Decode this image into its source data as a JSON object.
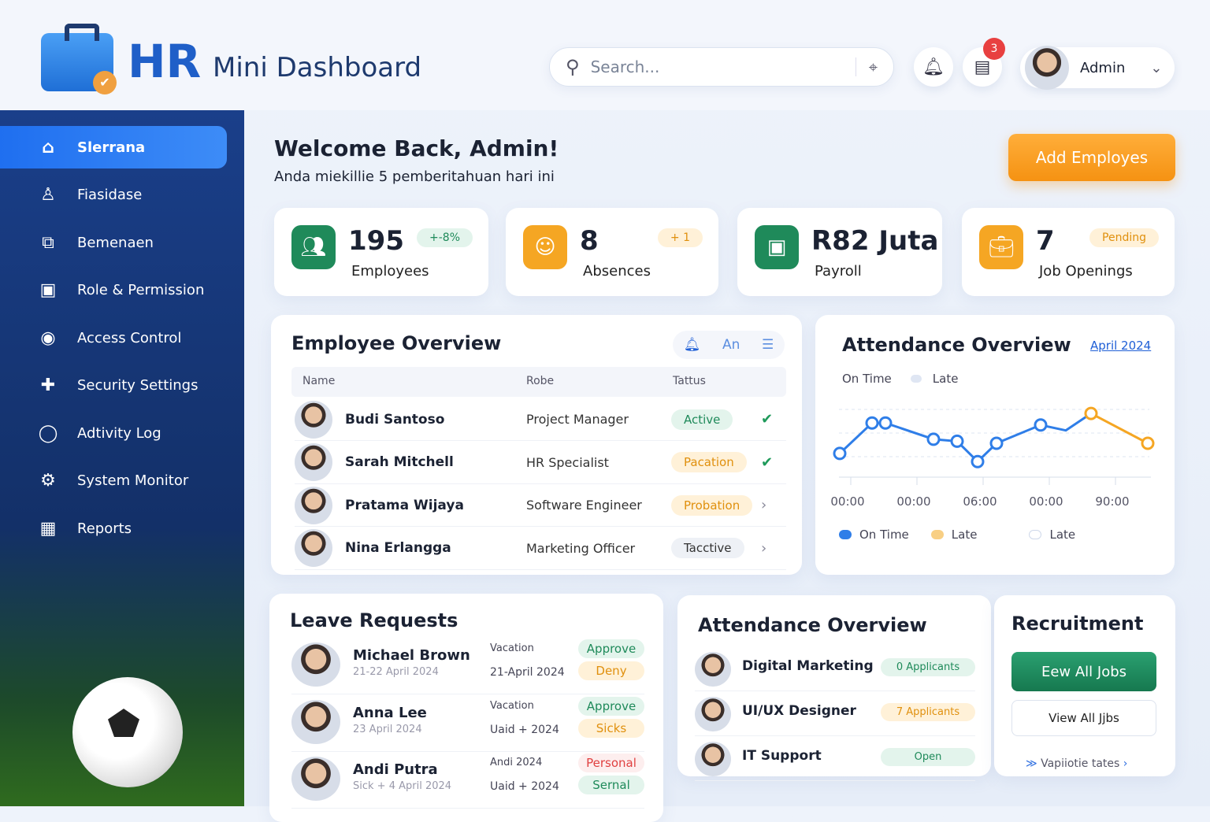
{
  "header": {
    "brand_bold": "HR",
    "brand_rest": "Mini Dashboard",
    "search_placeholder": "Search...",
    "notification_count": "3",
    "user_name": "Admin"
  },
  "sidebar": {
    "items": [
      {
        "label": "Slerrana",
        "icon": "home-icon",
        "active": true
      },
      {
        "label": "Fiasidase",
        "icon": "user-icon"
      },
      {
        "label": "Bemenaen",
        "icon": "devices-icon"
      },
      {
        "label": "Role & Permission",
        "icon": "briefcase-icon"
      },
      {
        "label": "Access Control",
        "icon": "eye-icon"
      },
      {
        "label": "Security Settings",
        "icon": "plus-badge-icon"
      },
      {
        "label": "Adtivity Log",
        "icon": "chat-icon"
      },
      {
        "label": "System Monitor",
        "icon": "gears-icon"
      },
      {
        "label": "Reports",
        "icon": "report-icon"
      }
    ]
  },
  "welcome": {
    "title": "Welcome Back, Admin!",
    "subtitle": "Anda miekillie 5 pemberitahuan hari ini",
    "add_button": "Add Employes"
  },
  "stats": [
    {
      "value": "195",
      "label": "Employees",
      "tag": "+-8%",
      "color": "#1f8a5a"
    },
    {
      "value": "8",
      "label": "Absences",
      "tag": "+ 1",
      "color": "#f5a623"
    },
    {
      "value": "R82 Juta",
      "label": "Payroll",
      "tag": "",
      "color": "#1f8a5a"
    },
    {
      "value": "7",
      "label": "Job Openings",
      "tag": "Pending",
      "color": "#f5a623"
    }
  ],
  "employee_overview": {
    "title": "Employee Overview",
    "toolbar": [
      "An"
    ],
    "columns": [
      "Name",
      "Robe",
      "Tattus"
    ],
    "rows": [
      {
        "name": "Budi Santoso",
        "role": "Project Manager",
        "status": "Active",
        "status_type": "g",
        "action": "✔"
      },
      {
        "name": "Sarah Mitchell",
        "role": "HR Specialist",
        "status": "Pacation",
        "status_type": "o",
        "action": "✔"
      },
      {
        "name": "Pratama Wijaya",
        "role": "Software Engineer",
        "status": "Probation",
        "status_type": "o",
        "action": "›"
      },
      {
        "name": "Nina Erlangga",
        "role": "Marketing Officer",
        "status": "Tacctive",
        "status_type": "gr",
        "action": "›"
      }
    ]
  },
  "attendance_chart": {
    "title": "Attendance Overview",
    "period_link": "April 2024",
    "top_legend": [
      "On Time",
      "Late"
    ],
    "bottom_legend": [
      "On Time",
      "Late",
      "Late"
    ]
  },
  "chart_data": {
    "type": "line",
    "title": "Attendance Overview",
    "x_ticks": [
      "00:00",
      "00:00",
      "06:00",
      "00:00",
      "90:00"
    ],
    "series": [
      {
        "name": "On Time",
        "color": "#2f7ee8",
        "points": [
          35,
          80,
          80,
          56,
          53,
          23,
          50,
          77,
          69,
          94
        ]
      },
      {
        "name": "Late",
        "color": "#f5a623",
        "points": [
          94,
          50
        ]
      }
    ],
    "grid": true
  },
  "leave_requests": {
    "title": "Leave Requests",
    "items": [
      {
        "name": "Michael Brown",
        "date": "21-22 April 2024",
        "type": "Vacation",
        "detail": "21-April 2024",
        "actions": [
          {
            "label": "Approve",
            "t": "g"
          },
          {
            "label": "Deny",
            "t": "o"
          }
        ]
      },
      {
        "name": "Anna Lee",
        "date": "23 April 2024",
        "type": "Vacation",
        "detail": "Uaid + 2024",
        "actions": [
          {
            "label": "Approve",
            "t": "g"
          },
          {
            "label": "Sicks",
            "t": "o"
          }
        ]
      },
      {
        "name": "Andi Putra",
        "date": "Sick + 4 April 2024",
        "type": "Andi 2024",
        "detail": "Uaid + 2024",
        "actions": [
          {
            "label": "Personal",
            "t": "r"
          },
          {
            "label": "Sernal",
            "t": "g"
          }
        ]
      }
    ]
  },
  "attendance_list": {
    "title": "Attendance Overview",
    "items": [
      {
        "name": "Digital Marketing",
        "tag": "0 Applicants",
        "t": "g"
      },
      {
        "name": "UI/UX Designer",
        "tag": "7 Applicants",
        "t": "o"
      },
      {
        "name": "IT Support",
        "tag": "Open",
        "t": "g"
      }
    ]
  },
  "recruitment": {
    "title": "Recruitment",
    "primary_button": "Eew All Jobs",
    "secondary_button": "View All Jjbs",
    "link": "Vapiiotie tates"
  }
}
